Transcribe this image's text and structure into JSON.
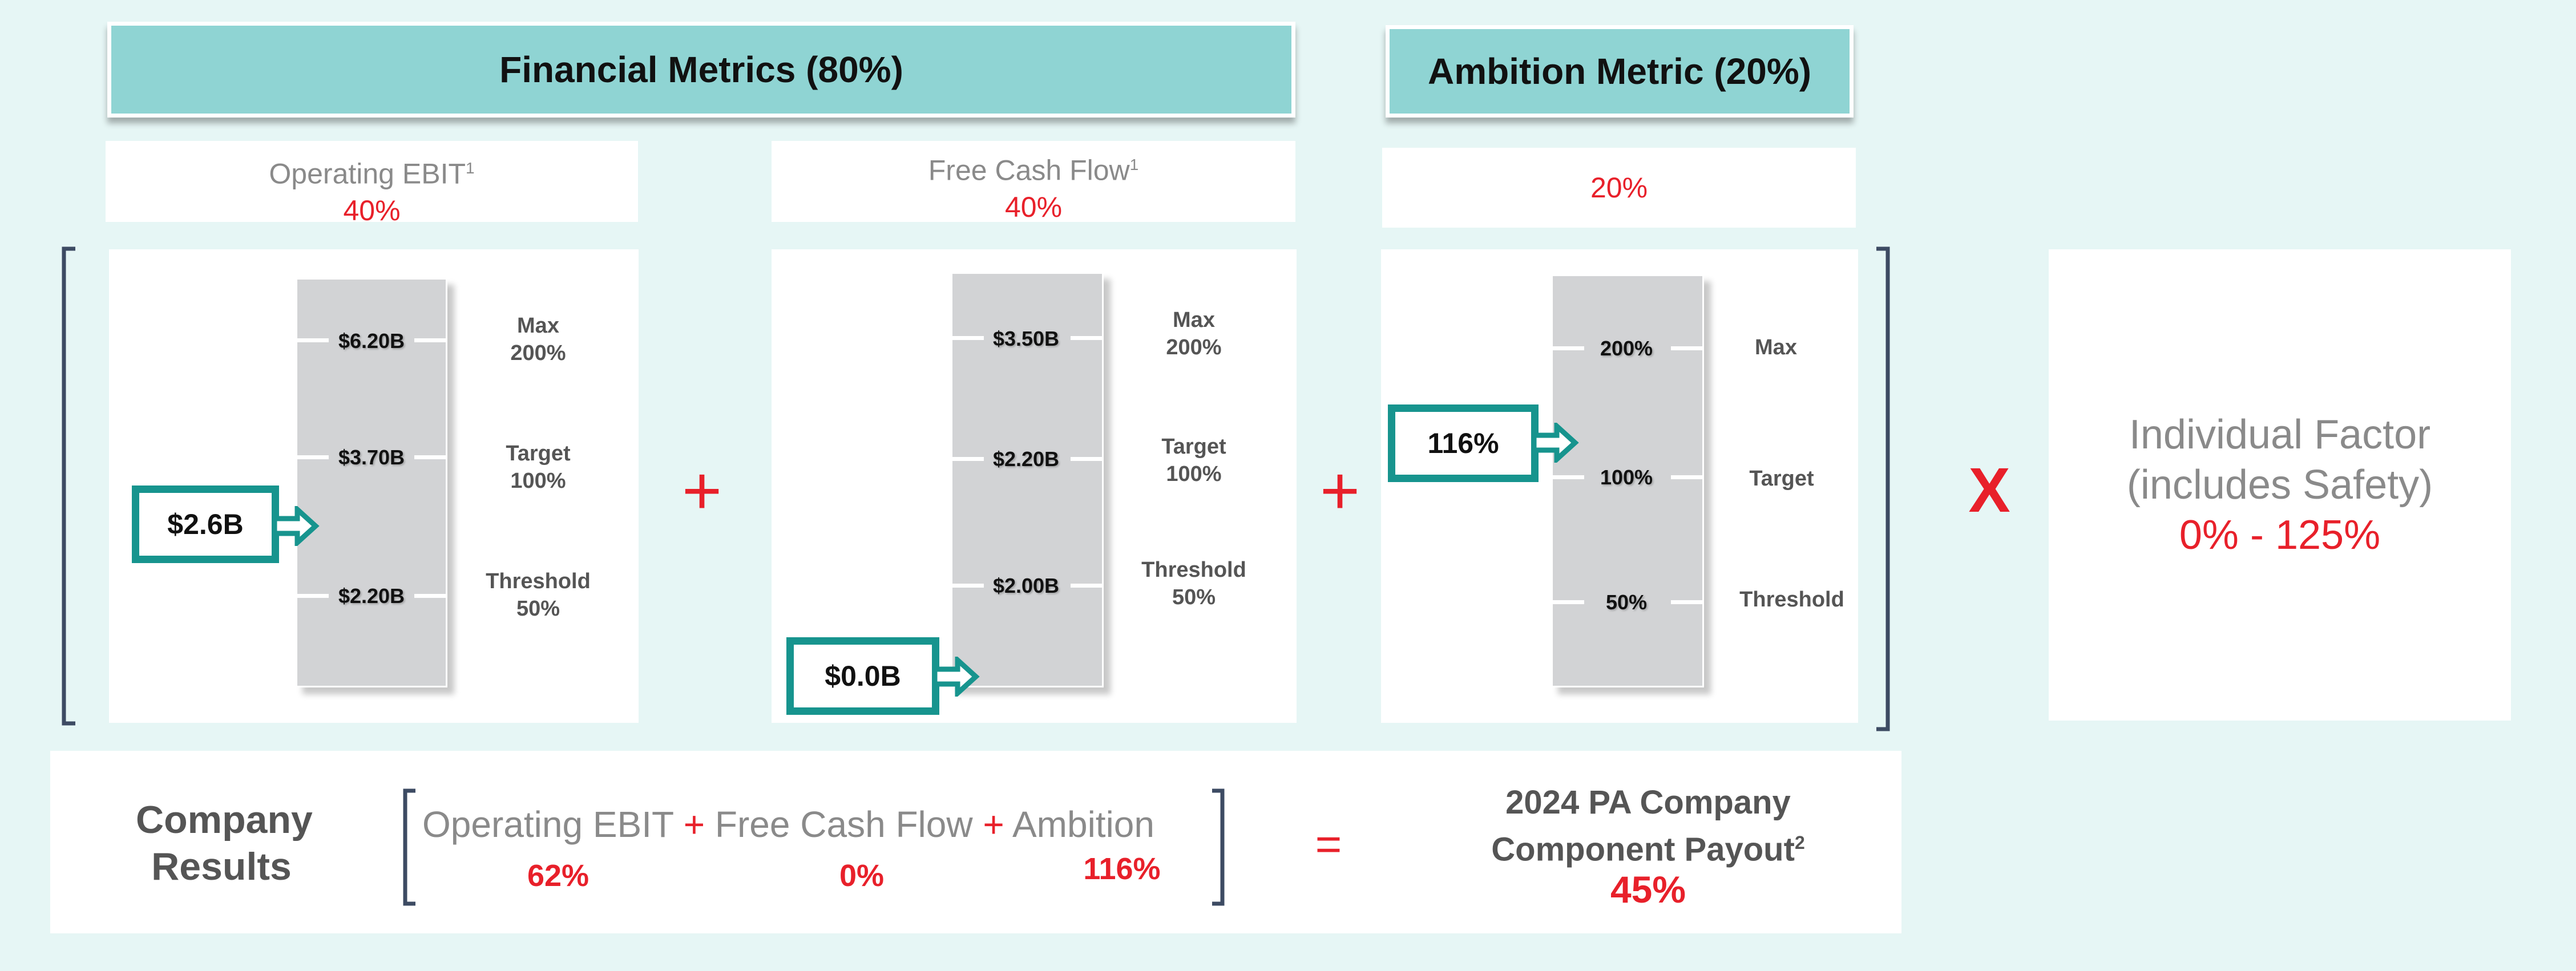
{
  "banners": {
    "financial": "Financial Metrics (80%)",
    "ambition": "Ambition Metric (20%)"
  },
  "metrics": [
    {
      "name": "Operating EBIT",
      "sup": "1",
      "weight": "40%",
      "levels": [
        {
          "value": "$6.20B",
          "label": "Max",
          "pct": "200%"
        },
        {
          "value": "$3.70B",
          "label": "Target",
          "pct": "100%"
        },
        {
          "value": "$2.20B",
          "label": "Threshold",
          "pct": "50%"
        }
      ],
      "actual": "$2.6B"
    },
    {
      "name": "Free Cash Flow",
      "sup": "1",
      "weight": "40%",
      "levels": [
        {
          "value": "$3.50B",
          "label": "Max",
          "pct": "200%"
        },
        {
          "value": "$2.20B",
          "label": "Target",
          "pct": "100%"
        },
        {
          "value": "$2.00B",
          "label": "Threshold",
          "pct": "50%"
        }
      ],
      "actual": "$0.0B"
    },
    {
      "name": "",
      "weight": "20%",
      "levels": [
        {
          "value": "200%",
          "label": "Max"
        },
        {
          "value": "100%",
          "label": "Target"
        },
        {
          "value": "50%",
          "label": "Threshold"
        }
      ],
      "actual": "116%"
    }
  ],
  "operators": {
    "plus": "+",
    "times": "X",
    "equals": "="
  },
  "individual": {
    "line1": "Individual Factor",
    "line2": "(includes Safety)",
    "range": "0% - 125%"
  },
  "results": {
    "title_line1": "Company",
    "title_line2": "Results",
    "components": [
      {
        "name": "Operating EBIT",
        "value": "62%"
      },
      {
        "name": "Free Cash Flow",
        "value": "0%"
      },
      {
        "name": "Ambition",
        "value": "116%"
      }
    ],
    "payout_line1": "2024 PA Company",
    "payout_line2": "Component Payout",
    "payout_sup": "2",
    "payout_value": "45%"
  },
  "colors": {
    "background": "#e6f6f5",
    "banner": "#8fd4d3",
    "accent_teal": "#17948e",
    "accent_red": "#e8202a",
    "scale_gray": "#d2d3d5",
    "bracket": "#3d4b63"
  }
}
